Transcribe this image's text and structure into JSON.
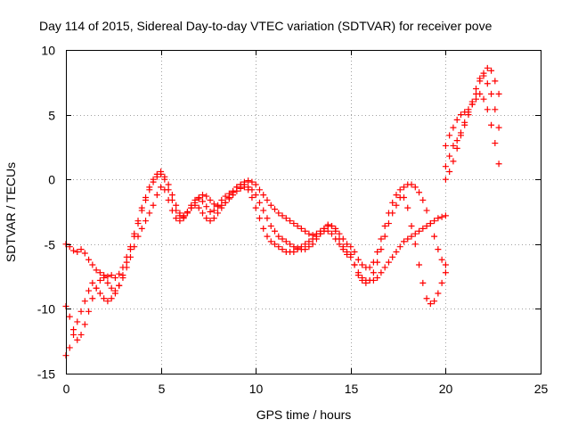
{
  "chart_data": {
    "type": "scatter",
    "title": "Day 114 of 2015, Sidereal Day-to-day VTEC variation (SDTVAR) for receiver pove",
    "xlabel": "GPS time / hours",
    "ylabel": "SDTVAR / TECUs",
    "xlim": [
      0,
      25
    ],
    "ylim": [
      -15,
      10
    ],
    "xticks": [
      "0",
      "5",
      "10",
      "15",
      "20",
      "25"
    ],
    "yticks": [
      "-15",
      "-10",
      "-5",
      "0",
      "5",
      "10"
    ],
    "grid": true,
    "legend": "none",
    "marker": "plus",
    "color": "#ff0000",
    "series": [
      {
        "x": [
          0.0,
          0.2,
          0.4,
          0.6,
          0.8,
          1.0,
          1.2,
          1.4,
          1.6,
          1.8,
          2.0,
          2.2,
          2.4,
          2.6,
          2.8,
          3.0,
          3.2,
          3.4,
          3.6,
          3.8,
          4.0,
          4.2,
          4.4,
          4.6,
          4.8,
          5.0,
          5.2,
          5.4,
          5.6,
          5.8,
          6.0,
          6.2,
          6.4,
          6.6,
          6.8,
          7.0,
          7.2,
          7.4,
          7.6,
          7.8,
          8.0,
          8.2,
          8.4,
          8.6,
          8.8,
          9.0,
          9.2,
          9.4,
          9.6,
          9.8,
          10.0,
          10.2,
          10.4,
          10.6,
          10.8,
          11.0,
          11.2,
          11.4,
          11.6,
          11.8,
          12.0,
          12.2,
          12.4,
          12.6,
          12.8,
          13.0,
          13.2,
          13.4,
          13.6,
          13.8,
          14.0,
          14.2,
          14.4,
          14.6,
          14.8,
          15.0,
          15.2,
          15.4,
          15.6,
          15.8,
          16.0,
          16.2,
          16.4,
          16.6,
          16.8,
          17.0,
          17.2,
          17.4,
          17.6,
          17.8,
          18.0,
          18.2,
          18.4,
          18.6,
          18.8,
          19.0,
          19.2,
          19.4,
          19.6,
          19.8,
          20.0
        ],
        "y": [
          -5.0,
          -5.2,
          -5.5,
          -5.6,
          -5.4,
          -5.7,
          -6.2,
          -6.6,
          -7.0,
          -7.2,
          -7.4,
          -7.5,
          -7.4,
          -7.6,
          -7.3,
          -6.8,
          -6.0,
          -5.2,
          -4.2,
          -3.2,
          -2.2,
          -1.4,
          -0.6,
          0.0,
          0.4,
          0.6,
          0.2,
          -0.4,
          -1.2,
          -2.0,
          -2.6,
          -2.8,
          -2.5,
          -2.0,
          -1.6,
          -1.5,
          -1.7,
          -2.1,
          -2.5,
          -2.4,
          -2.0,
          -1.6,
          -1.3,
          -1.1,
          -0.9,
          -0.6,
          -0.4,
          -0.2,
          -0.1,
          -0.2,
          -0.4,
          -0.8,
          -1.2,
          -1.6,
          -2.0,
          -2.3,
          -2.6,
          -2.8,
          -3.0,
          -3.2,
          -3.4,
          -3.6,
          -3.8,
          -4.0,
          -4.2,
          -4.3,
          -4.2,
          -4.0,
          -3.8,
          -3.6,
          -3.6,
          -3.8,
          -4.2,
          -4.6,
          -5.0,
          -5.2,
          -5.6,
          -6.2,
          -6.6,
          -6.8,
          -6.8,
          -6.4,
          -5.6,
          -4.6,
          -3.6,
          -2.6,
          -1.8,
          -1.2,
          -0.8,
          -0.6,
          -0.4,
          -0.4,
          -0.6,
          -1.0,
          -1.6,
          -2.4,
          -3.4,
          -4.4,
          -5.4,
          -6.2,
          -6.6
        ]
      },
      {
        "x": [
          0.0,
          0.2,
          0.4,
          0.6,
          0.8,
          1.0,
          1.2,
          1.4,
          1.6,
          1.8,
          2.0,
          2.2,
          2.4,
          2.6,
          2.8,
          3.0,
          3.2,
          3.4,
          3.6,
          3.8,
          4.0,
          4.2,
          4.4,
          4.6,
          4.8,
          5.0,
          5.2,
          5.4,
          5.6,
          5.8,
          6.0,
          6.2,
          6.4,
          6.6,
          6.8,
          7.0,
          7.2,
          7.4,
          7.6,
          7.8,
          8.0,
          8.2,
          8.4,
          8.6,
          8.8,
          9.0,
          9.2,
          9.4,
          9.6,
          9.8,
          10.0,
          10.2,
          10.4,
          10.6,
          10.8,
          11.0,
          11.2,
          11.4,
          11.6,
          11.8,
          12.0,
          12.2,
          12.4,
          12.6,
          12.8,
          13.0,
          13.2,
          13.4,
          13.6,
          13.8,
          14.0,
          14.2,
          14.4,
          14.6,
          14.8,
          15.0,
          15.2,
          15.4,
          15.6,
          15.8,
          16.0,
          16.2,
          16.4,
          16.6,
          16.8,
          17.0,
          17.2,
          17.4,
          17.6,
          17.8,
          18.0,
          18.2,
          18.4,
          18.6,
          18.8,
          19.0,
          19.2,
          19.4,
          19.6,
          19.8,
          20.0
        ],
        "y": [
          -9.8,
          -10.6,
          -11.6,
          -12.4,
          -12.0,
          -11.2,
          -10.2,
          -9.2,
          -8.4,
          -7.8,
          -7.6,
          -8.0,
          -8.4,
          -8.6,
          -8.2,
          -7.4,
          -6.4,
          -5.4,
          -4.4,
          -3.4,
          -2.4,
          -1.6,
          -0.8,
          -0.2,
          0.2,
          0.4,
          0.0,
          -0.8,
          -1.6,
          -2.4,
          -2.8,
          -2.9,
          -2.6,
          -2.2,
          -1.8,
          -1.4,
          -1.2,
          -1.3,
          -1.6,
          -1.9,
          -2.1,
          -2.0,
          -1.8,
          -1.5,
          -1.2,
          -0.9,
          -0.7,
          -0.6,
          -0.6,
          -0.8,
          -1.2,
          -1.8,
          -2.4,
          -3.0,
          -3.6,
          -4.0,
          -4.4,
          -4.6,
          -4.8,
          -5.0,
          -5.2,
          -5.3,
          -5.4,
          -5.4,
          -5.2,
          -5.0,
          -4.6,
          -4.2,
          -3.8,
          -3.5,
          -3.6,
          -4.0,
          -4.6,
          -5.2,
          -5.6,
          -5.8,
          -6.6,
          -7.4,
          -7.8,
          -8.0,
          -7.8,
          -7.2,
          -6.4,
          -5.4,
          -4.4,
          -3.4,
          -2.6,
          -2.0,
          -1.4,
          -1.4,
          -2.2,
          -3.6,
          -5.0,
          -6.6,
          -8.0,
          -9.2,
          -9.6,
          -9.4,
          -8.8,
          -8.0,
          -7.2
        ]
      },
      {
        "x": [
          0.0,
          0.2,
          0.4,
          0.6,
          0.8,
          1.0,
          1.2,
          1.4,
          1.6,
          1.8,
          2.0,
          2.2,
          2.4,
          2.6,
          2.8,
          3.0,
          3.2,
          3.4,
          3.6,
          3.8,
          4.0,
          4.2,
          4.4,
          4.6,
          4.8,
          5.0,
          5.2,
          5.4,
          5.6,
          5.8,
          6.0,
          6.2,
          6.4,
          6.6,
          6.8,
          7.0,
          7.2,
          7.4,
          7.6,
          7.8,
          8.0,
          8.2,
          8.4,
          8.6,
          8.8,
          9.0,
          9.2,
          9.4,
          9.6,
          9.8,
          10.0,
          10.2,
          10.4,
          10.6,
          10.8,
          11.0,
          11.2,
          11.4,
          11.6,
          11.8,
          12.0,
          12.2,
          12.4,
          12.6,
          12.8,
          13.0,
          13.2,
          13.4,
          13.6,
          13.8,
          14.0,
          14.2,
          14.4,
          14.6,
          14.8,
          15.0,
          15.2,
          15.4,
          15.6,
          15.8,
          16.0,
          16.2,
          16.4,
          16.6,
          16.8,
          17.0,
          17.2,
          17.4,
          17.6,
          17.8,
          18.0,
          18.2,
          18.4,
          18.6,
          18.8,
          19.0,
          19.2,
          19.4,
          19.6,
          19.8,
          20.0
        ],
        "y": [
          -13.6,
          -13.0,
          -12.0,
          -11.0,
          -10.2,
          -9.4,
          -8.6,
          -8.0,
          -8.4,
          -8.8,
          -9.2,
          -9.4,
          -9.2,
          -8.8,
          -8.2,
          -7.6,
          -6.8,
          -6.0,
          -5.2,
          -4.4,
          -3.8,
          -3.2,
          -2.6,
          -2.0,
          -1.2,
          -0.6,
          -0.8,
          -1.6,
          -2.4,
          -3.0,
          -3.2,
          -3.0,
          -2.6,
          -2.2,
          -2.0,
          -2.2,
          -2.6,
          -3.0,
          -3.2,
          -3.0,
          -2.6,
          -2.2,
          -1.8,
          -1.4,
          -1.0,
          -0.6,
          -0.4,
          -0.4,
          -0.8,
          -1.4,
          -2.2,
          -3.0,
          -3.8,
          -4.4,
          -4.8,
          -5.0,
          -5.2,
          -5.4,
          -5.6,
          -5.6,
          -5.6,
          -5.4,
          -5.2,
          -5.0,
          -4.8,
          -4.6,
          -4.4,
          -4.2,
          -4.0,
          -4.0,
          -4.2,
          -4.6,
          -5.0,
          -5.4,
          -5.8,
          -6.0,
          -6.6,
          -7.2,
          -7.6,
          -7.8,
          -7.8,
          -7.8,
          -7.6,
          -7.2,
          -6.8,
          -6.4,
          -6.0,
          -5.6,
          -5.2,
          -4.8,
          -4.6,
          -4.4,
          -4.2,
          -4.0,
          -3.8,
          -3.6,
          -3.4,
          -3.2,
          -3.0,
          -2.9,
          -2.8
        ]
      },
      {
        "x": [
          20.0,
          20.2,
          20.4,
          20.6,
          20.8,
          21.0,
          21.2,
          21.4,
          21.6,
          21.8,
          22.0,
          22.2,
          22.4,
          22.6,
          22.8
        ],
        "y": [
          0.0,
          0.6,
          1.4,
          2.4,
          3.4,
          4.2,
          5.0,
          5.8,
          6.6,
          7.6,
          8.2,
          8.6,
          8.4,
          7.6,
          6.6
        ]
      },
      {
        "x": [
          20.0,
          20.2,
          20.4,
          20.6,
          20.8,
          21.0,
          21.2,
          21.4,
          21.6,
          21.8,
          22.0,
          22.2,
          22.4,
          22.6,
          22.8
        ],
        "y": [
          2.6,
          3.4,
          4.0,
          4.6,
          5.0,
          5.2,
          5.4,
          5.8,
          6.2,
          6.6,
          6.2,
          5.4,
          4.2,
          2.8,
          1.2
        ]
      },
      {
        "x": [
          20.0,
          20.2,
          20.4,
          20.6,
          20.8,
          21.0,
          21.2,
          21.4,
          21.6,
          21.8,
          22.0,
          22.2,
          22.4,
          22.6,
          22.8
        ],
        "y": [
          1.0,
          1.8,
          2.6,
          3.0,
          3.6,
          4.4,
          5.2,
          6.0,
          7.0,
          7.8,
          8.0,
          7.4,
          6.6,
          5.4,
          4.0
        ]
      }
    ]
  }
}
